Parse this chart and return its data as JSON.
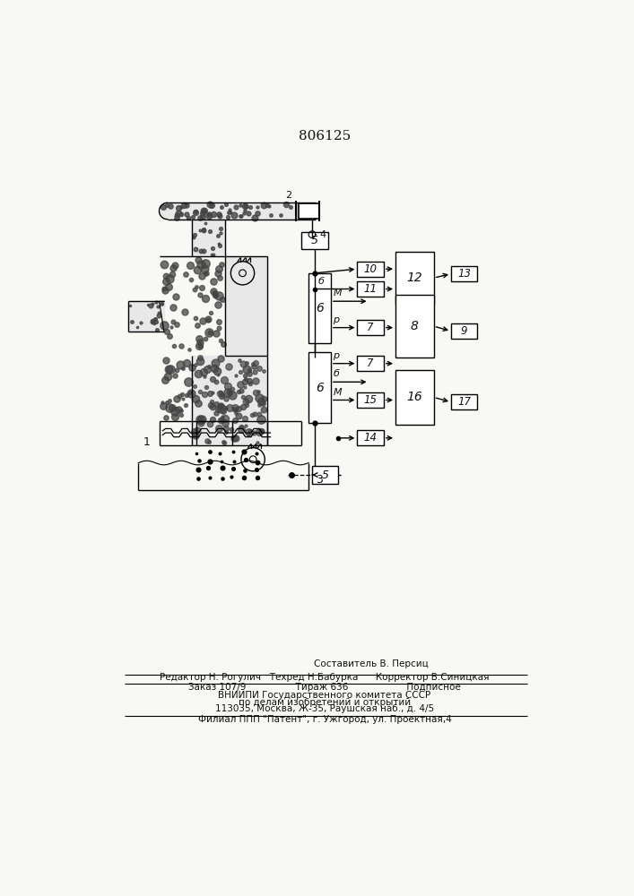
{
  "title": "806125",
  "bg_color": "#f8f8f5",
  "text_color": "#111111",
  "footer_lines": [
    "Составитель В. Персиц",
    "Редактор Н. Рогулич   Техред Н.Бабурка      Корректор В.Синицкая",
    "Заказ 107/9                 Тираж 636                    Подписное",
    "ВНИИПИ Государственного комитета СССР",
    "по делам изобретений и открытий",
    "113035, Москва, Ж-35, Раушская наб., д. 4/5",
    "Филиал ППП \"Патент\", г. Ужгород, ул. Проектная,4"
  ]
}
